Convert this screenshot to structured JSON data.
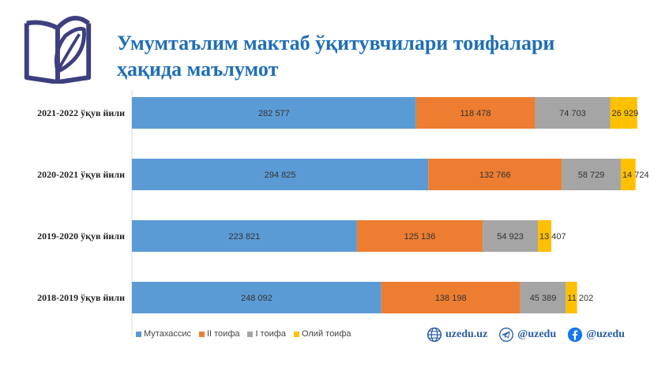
{
  "header": {
    "title_line1": "Умумтаълим мактаб ўқитувчилари тоифалари",
    "title_line2": "ҳақида маълумот"
  },
  "colors": {
    "title": "#1f6fb5",
    "series": [
      "#5b9bd5",
      "#ed7d31",
      "#a5a5a5",
      "#ffc000"
    ],
    "social": "#2a5ea8",
    "logo": "#3d3f7f"
  },
  "social": {
    "website": {
      "icon": "globe-icon",
      "label": "uzedu.uz"
    },
    "telegram": {
      "icon": "telegram-icon",
      "label": "@uzedu"
    },
    "facebook": {
      "icon": "facebook-icon",
      "label": "@uzedu"
    }
  },
  "chart_data": {
    "type": "bar",
    "orientation": "horizontal",
    "stacked": true,
    "categories": [
      "2021-2022 ўқув йили",
      "2020-2021 ўқув йили",
      "2019-2020 ўқув йили",
      "2018-2019 ўқув йили"
    ],
    "series": [
      {
        "name": "Мутахассис",
        "values": [
          282577,
          294825,
          223821,
          248092
        ],
        "labels": [
          "282 577",
          "294 825",
          "223 821",
          "248 092"
        ]
      },
      {
        "name": "II тоифа",
        "values": [
          118478,
          132766,
          125136,
          138198
        ],
        "labels": [
          "118 478",
          "132 766",
          "125 136",
          "138 198"
        ]
      },
      {
        "name": "I тоифа",
        "values": [
          74703,
          58729,
          54923,
          45389
        ],
        "labels": [
          "74 703",
          "58 729",
          "54 923",
          "45 389"
        ]
      },
      {
        "name": "Олий тоифа",
        "values": [
          26929,
          14724,
          13407,
          11202
        ],
        "labels": [
          "26 929",
          "14 724",
          "13 407",
          "11 202"
        ]
      }
    ],
    "xlim": [
      0,
      550000
    ],
    "legend_position": "bottom-left",
    "grid": false
  }
}
